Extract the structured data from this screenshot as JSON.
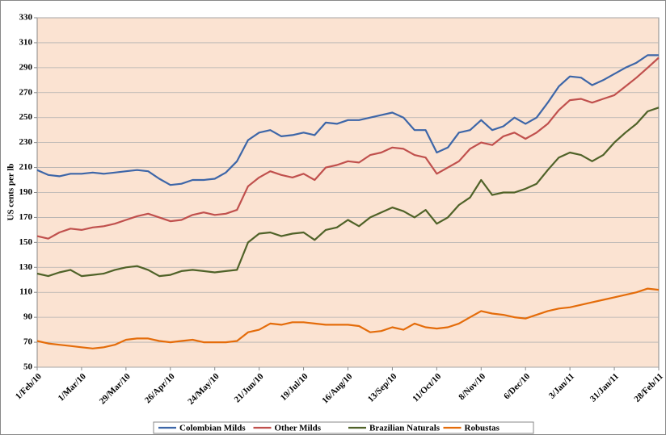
{
  "chart_data": {
    "type": "line",
    "y_axis_label": "US cents per lb",
    "categories": [
      "1/Feb/10",
      null,
      null,
      null,
      "1/Mar/10",
      null,
      null,
      null,
      "29/Mar/10",
      null,
      null,
      null,
      "26/Apr/10",
      null,
      null,
      null,
      "24/May/10",
      null,
      null,
      null,
      "21/Jun/10",
      null,
      null,
      null,
      "19/Jul/10",
      null,
      null,
      null,
      "16/Aug/10",
      null,
      null,
      null,
      "13/Sep/10",
      null,
      null,
      null,
      "11/Oct/10",
      null,
      null,
      null,
      "8/Nov/10",
      null,
      null,
      null,
      "6/Dec/10",
      null,
      null,
      null,
      "3/Jan/11",
      null,
      null,
      null,
      "31/Jan/11",
      null,
      null,
      null,
      "28/Feb/11"
    ],
    "series": [
      {
        "name": "Colombian Milds",
        "color": "#3d66a8",
        "values": [
          208,
          204,
          203,
          205,
          205,
          206,
          205,
          206,
          207,
          208,
          207,
          201,
          196,
          197,
          200,
          200,
          201,
          206,
          215,
          232,
          238,
          240,
          235,
          236,
          238,
          236,
          246,
          245,
          248,
          248,
          250,
          252,
          254,
          250,
          240,
          240,
          222,
          226,
          238,
          240,
          248,
          240,
          243,
          250,
          245,
          250,
          262,
          275,
          283,
          282,
          276,
          280,
          285,
          290,
          294,
          300,
          300
        ]
      },
      {
        "name": "Other Milds",
        "color": "#c0504d",
        "values": [
          155,
          153,
          158,
          161,
          160,
          162,
          163,
          165,
          168,
          171,
          173,
          170,
          167,
          168,
          172,
          174,
          172,
          173,
          176,
          195,
          202,
          207,
          204,
          202,
          205,
          200,
          210,
          212,
          215,
          214,
          220,
          222,
          226,
          225,
          220,
          218,
          205,
          210,
          215,
          225,
          230,
          228,
          235,
          238,
          233,
          238,
          245,
          256,
          264,
          265,
          262,
          265,
          268,
          275,
          282,
          290,
          298
        ]
      },
      {
        "name": "Brazilian Naturals",
        "color": "#4f6228",
        "values": [
          125,
          123,
          126,
          128,
          123,
          124,
          125,
          128,
          130,
          131,
          128,
          123,
          124,
          127,
          128,
          127,
          126,
          127,
          128,
          150,
          157,
          158,
          155,
          157,
          158,
          152,
          160,
          162,
          168,
          163,
          170,
          174,
          178,
          175,
          170,
          176,
          165,
          170,
          180,
          186,
          200,
          188,
          190,
          190,
          193,
          197,
          208,
          218,
          222,
          220,
          215,
          220,
          230,
          238,
          245,
          255,
          258
        ]
      },
      {
        "name": "Robustas",
        "color": "#e46c0a",
        "values": [
          71,
          69,
          68,
          67,
          66,
          65,
          66,
          68,
          72,
          73,
          73,
          71,
          70,
          71,
          72,
          70,
          70,
          70,
          71,
          78,
          80,
          85,
          84,
          86,
          86,
          85,
          84,
          84,
          84,
          83,
          78,
          79,
          82,
          80,
          85,
          82,
          81,
          82,
          85,
          90,
          95,
          93,
          92,
          90,
          89,
          92,
          95,
          97,
          98,
          100,
          102,
          104,
          106,
          108,
          110,
          113,
          112
        ]
      }
    ],
    "ylim": [
      50,
      330
    ],
    "yticks": [
      50,
      70,
      90,
      110,
      130,
      150,
      170,
      190,
      210,
      230,
      250,
      270,
      290,
      310,
      330
    ],
    "grid": true,
    "legend": "bottom"
  }
}
